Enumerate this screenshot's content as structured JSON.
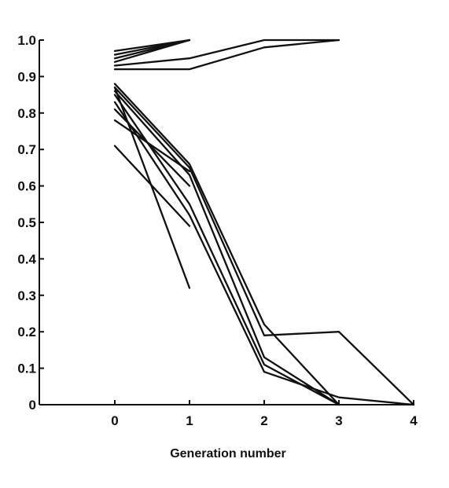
{
  "chart_data": {
    "type": "line",
    "title": "",
    "xlabel": "Generation number",
    "ylabel": "",
    "xlim": [
      -1,
      4
    ],
    "ylim": [
      0,
      1.0
    ],
    "x_ticks": [
      0,
      1,
      2,
      3,
      4
    ],
    "x_tick_labels": [
      "0",
      "1",
      "2",
      "3",
      "4"
    ],
    "y_ticks": [
      0,
      0.1,
      0.2,
      0.3,
      0.4,
      0.5,
      0.6,
      0.7,
      0.8,
      0.9,
      1.0
    ],
    "y_tick_labels": [
      "0",
      "0.1",
      "0.2",
      "0.3",
      "0.4",
      "0.5",
      "0.6",
      "0.7",
      "0.8",
      "0.9",
      "1.0"
    ],
    "grid": false,
    "legend": "none",
    "series": [
      {
        "x": [
          0,
          1
        ],
        "values": [
          0.97,
          1.0
        ]
      },
      {
        "x": [
          0,
          1
        ],
        "values": [
          0.96,
          1.0
        ]
      },
      {
        "x": [
          0,
          1
        ],
        "values": [
          0.95,
          1.0
        ]
      },
      {
        "x": [
          0,
          1
        ],
        "values": [
          0.94,
          1.0
        ]
      },
      {
        "x": [
          0,
          1,
          2,
          3
        ],
        "values": [
          0.93,
          0.95,
          1.0,
          1.0
        ]
      },
      {
        "x": [
          0,
          1,
          2,
          3
        ],
        "values": [
          0.92,
          0.92,
          0.98,
          1.0
        ]
      },
      {
        "x": [
          0,
          1
        ],
        "values": [
          0.87,
          0.32
        ]
      },
      {
        "x": [
          0,
          1
        ],
        "values": [
          0.71,
          0.49
        ]
      },
      {
        "x": [
          0,
          1,
          2,
          3
        ],
        "values": [
          0.88,
          0.66,
          0.22,
          0.0
        ]
      },
      {
        "x": [
          0,
          1,
          2,
          3,
          4
        ],
        "values": [
          0.87,
          0.65,
          0.19,
          0.2,
          0.0
        ]
      },
      {
        "x": [
          0,
          1,
          2,
          3
        ],
        "values": [
          0.86,
          0.63,
          0.13,
          0.0
        ]
      },
      {
        "x": [
          0,
          1,
          2,
          3
        ],
        "values": [
          0.85,
          0.55,
          0.11,
          0.0
        ]
      },
      {
        "x": [
          0,
          1,
          2,
          3,
          4
        ],
        "values": [
          0.83,
          0.52,
          0.09,
          0.02,
          0.0
        ]
      },
      {
        "x": [
          0,
          1
        ],
        "values": [
          0.81,
          0.6
        ]
      },
      {
        "x": [
          0,
          1
        ],
        "values": [
          0.78,
          0.64
        ]
      }
    ]
  }
}
